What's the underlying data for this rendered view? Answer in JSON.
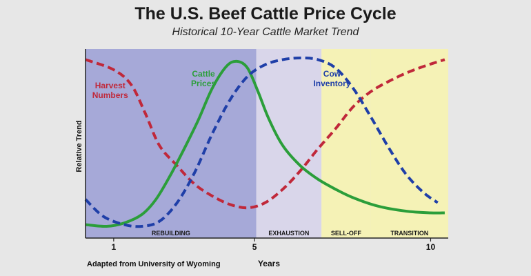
{
  "chart_data": {
    "type": "line",
    "title": "The U.S. Beef Cattle Price Cycle",
    "subtitle": "Historical 10-Year Cattle Market Trend",
    "xlabel": "Years",
    "ylabel": "Relative Trend",
    "source_note": "Adapted from University of Wyoming",
    "xlim": [
      0.2,
      10.5
    ],
    "ylim": [
      0,
      1
    ],
    "x_ticks": [
      1,
      5,
      10
    ],
    "grid": false,
    "phases": [
      {
        "name": "REBUILDING",
        "x_start": 0.2,
        "x_end": 5.05,
        "color": "#a6a9d8"
      },
      {
        "name": "EXHAUSTION",
        "x_start": 5.05,
        "x_end": 6.9,
        "color": "#d9d6ea"
      },
      {
        "name": "SELL-OFF",
        "x_start": 6.9,
        "x_end": 8.3,
        "color": "#f5f2b6"
      },
      {
        "name": "TRANSITION",
        "x_start": 8.3,
        "x_end": 10.5,
        "color": "#f5f2b6"
      }
    ],
    "series": [
      {
        "name": "Harvest Numbers",
        "color": "#c0283a",
        "dash": true,
        "x": [
          0.2,
          1.0,
          1.5,
          1.9,
          2.3,
          2.8,
          3.3,
          3.8,
          4.3,
          4.8,
          5.3,
          5.8,
          6.3,
          6.8,
          7.3,
          7.8,
          8.3,
          8.8,
          9.3,
          9.8,
          10.4
        ],
        "y": [
          0.99,
          0.93,
          0.84,
          0.67,
          0.48,
          0.36,
          0.25,
          0.18,
          0.13,
          0.11,
          0.14,
          0.22,
          0.33,
          0.46,
          0.58,
          0.71,
          0.8,
          0.86,
          0.91,
          0.95,
          0.99
        ]
      },
      {
        "name": "Cattle Prices",
        "color": "#2b9e3a",
        "dash": false,
        "x": [
          0.2,
          0.8,
          1.3,
          1.8,
          2.2,
          2.6,
          3.0,
          3.4,
          3.8,
          4.2,
          4.5,
          4.8,
          5.1,
          5.4,
          5.8,
          6.3,
          6.8,
          7.3,
          7.8,
          8.5,
          9.3,
          10.0,
          10.4
        ],
        "y": [
          0.01,
          0.0,
          0.02,
          0.07,
          0.16,
          0.3,
          0.46,
          0.63,
          0.82,
          0.95,
          0.98,
          0.94,
          0.8,
          0.64,
          0.48,
          0.36,
          0.28,
          0.22,
          0.17,
          0.12,
          0.09,
          0.08,
          0.08
        ]
      },
      {
        "name": "Cow Inventory",
        "color": "#1f3fa8",
        "dash": true,
        "x": [
          0.2,
          0.7,
          1.3,
          1.8,
          2.3,
          2.8,
          3.3,
          3.8,
          4.3,
          4.8,
          5.3,
          5.8,
          6.3,
          6.8,
          7.3,
          7.8,
          8.3,
          8.8,
          9.3,
          9.8,
          10.2
        ],
        "y": [
          0.16,
          0.06,
          0.01,
          0.0,
          0.03,
          0.14,
          0.32,
          0.55,
          0.75,
          0.89,
          0.96,
          0.99,
          1.0,
          0.99,
          0.94,
          0.82,
          0.65,
          0.47,
          0.31,
          0.2,
          0.14
        ]
      }
    ],
    "series_labels": [
      {
        "lines": [
          "Harvest",
          "Numbers"
        ],
        "color": "#c0283a",
        "x": 0.9,
        "y": 0.82
      },
      {
        "lines": [
          "Cattle",
          "Prices"
        ],
        "color": "#2b9e3a",
        "x": 3.55,
        "y": 0.89
      },
      {
        "lines": [
          "Cow",
          "Inventory"
        ],
        "color": "#1f3fa8",
        "x": 7.2,
        "y": 0.89
      }
    ]
  }
}
